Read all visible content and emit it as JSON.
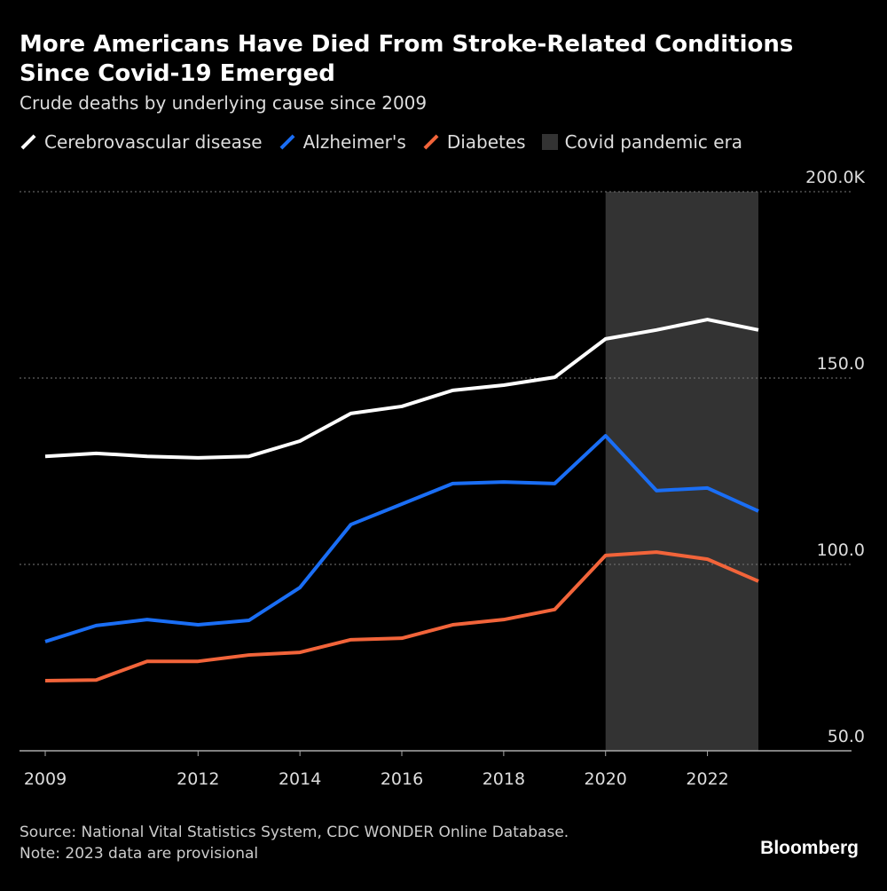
{
  "chart_data": {
    "type": "line",
    "title": "More Americans Have Died From Stroke-Related Conditions Since Covid-19 Emerged",
    "subtitle": "Crude deaths by underlying cause since 2009",
    "x": [
      2009,
      2010,
      2011,
      2012,
      2013,
      2014,
      2015,
      2016,
      2017,
      2018,
      2019,
      2020,
      2021,
      2022,
      2023
    ],
    "x_ticks": [
      "2009",
      "2012",
      "2014",
      "2016",
      "2018",
      "2020",
      "2022"
    ],
    "y_ticks": [
      "50.0",
      "100.0",
      "150.0",
      "200.0K"
    ],
    "y_tick_values": [
      50,
      100,
      150,
      200
    ],
    "ylim": [
      50,
      200
    ],
    "y_unit": "thousands",
    "grid": true,
    "legend_placement": "top-left",
    "series": [
      {
        "name": "Cerebrovascular disease",
        "color": "#ffffff",
        "values": [
          129.0,
          129.8,
          129.0,
          128.6,
          129.0,
          133.1,
          140.5,
          142.4,
          146.7,
          148.1,
          150.2,
          160.5,
          162.9,
          165.7,
          162.9
        ]
      },
      {
        "name": "Alzheimer's",
        "color": "#1a6ef5",
        "values": [
          79.3,
          83.6,
          85.2,
          83.8,
          85.0,
          93.8,
          110.7,
          116.2,
          121.7,
          122.1,
          121.7,
          134.5,
          119.8,
          120.5,
          114.3
        ]
      },
      {
        "name": "Diabetes",
        "color": "#f2643a",
        "values": [
          68.8,
          69.0,
          74.0,
          74.0,
          75.7,
          76.4,
          79.8,
          80.2,
          83.8,
          85.2,
          87.9,
          102.4,
          103.3,
          101.4,
          95.5
        ]
      }
    ],
    "shaded_region": {
      "name": "Covid pandemic era",
      "from": 2020,
      "to": 2023,
      "color": "#333333"
    }
  },
  "footer": {
    "source": "Source: National Vital Statistics System, CDC WONDER Online Database.",
    "note": "Note: 2023 data are provisional",
    "logo": "Bloomberg"
  }
}
